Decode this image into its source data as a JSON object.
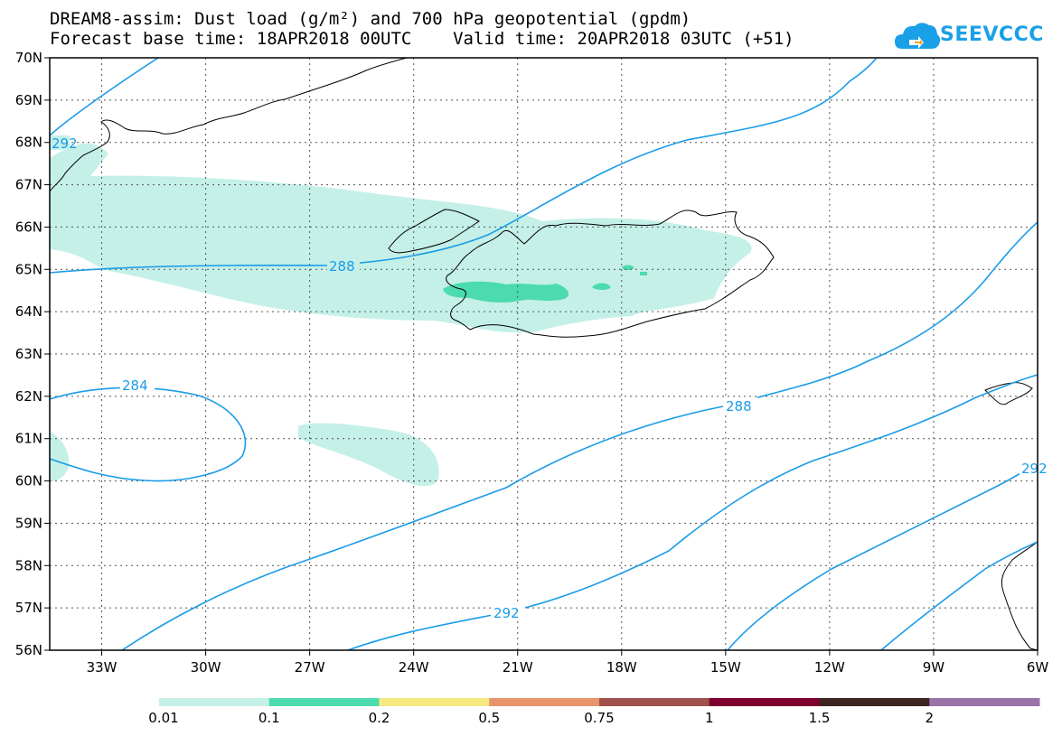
{
  "header": {
    "title_line1": "DREAM8-assim: Dust load (g/m²) and 700 hPa geopotential (gpdm)",
    "title_line2": "Forecast base time: 18APR2018 00UTC    Valid time: 20APR2018 03UTC (+51)",
    "logo_text": "SEEVCCC",
    "logo_icon": "cloud-logo-icon"
  },
  "map": {
    "lon_range": [
      -34.5,
      -6
    ],
    "lat_range": [
      56,
      70
    ],
    "lon_ticks": [
      "33W",
      "30W",
      "27W",
      "24W",
      "21W",
      "18W",
      "15W",
      "12W",
      "9W",
      "6W"
    ],
    "lat_ticks": [
      "56N",
      "57N",
      "58N",
      "59N",
      "60N",
      "61N",
      "62N",
      "63N",
      "64N",
      "65N",
      "66N",
      "67N",
      "68N",
      "69N",
      "70N"
    ],
    "gridlines": true,
    "contour_color": "#1a9ce8",
    "contour_labels": [
      "288",
      "284",
      "288",
      "292",
      "292",
      "292"
    ],
    "dust_colors": {
      "light": "#c4f0e8",
      "medium": "#4cdbae"
    }
  },
  "colorbar": {
    "colors": [
      "#c4f0e8",
      "#4cdbae",
      "#f8e880",
      "#e8946c",
      "#a0524c",
      "#800030",
      "#3c2420",
      "#9a73a8"
    ],
    "labels": [
      "0.01",
      "0.1",
      "0.2",
      "0.5",
      "0.75",
      "1",
      "1.5",
      "2"
    ]
  }
}
